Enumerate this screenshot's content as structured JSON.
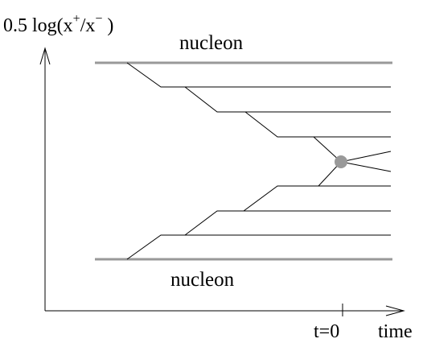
{
  "labels": {
    "y_axis_main": "0.5 log(x",
    "y_axis_sup1": "+",
    "y_axis_mid": "/x",
    "y_axis_sup2": "−",
    "y_axis_end": " )",
    "nucleon_top": "nucleon",
    "nucleon_bottom": "nucleon",
    "t_zero": "t=0",
    "time": "time"
  },
  "colors": {
    "ink": "#000000",
    "nucleon_line": "#999999",
    "vertex": "#999999"
  }
}
